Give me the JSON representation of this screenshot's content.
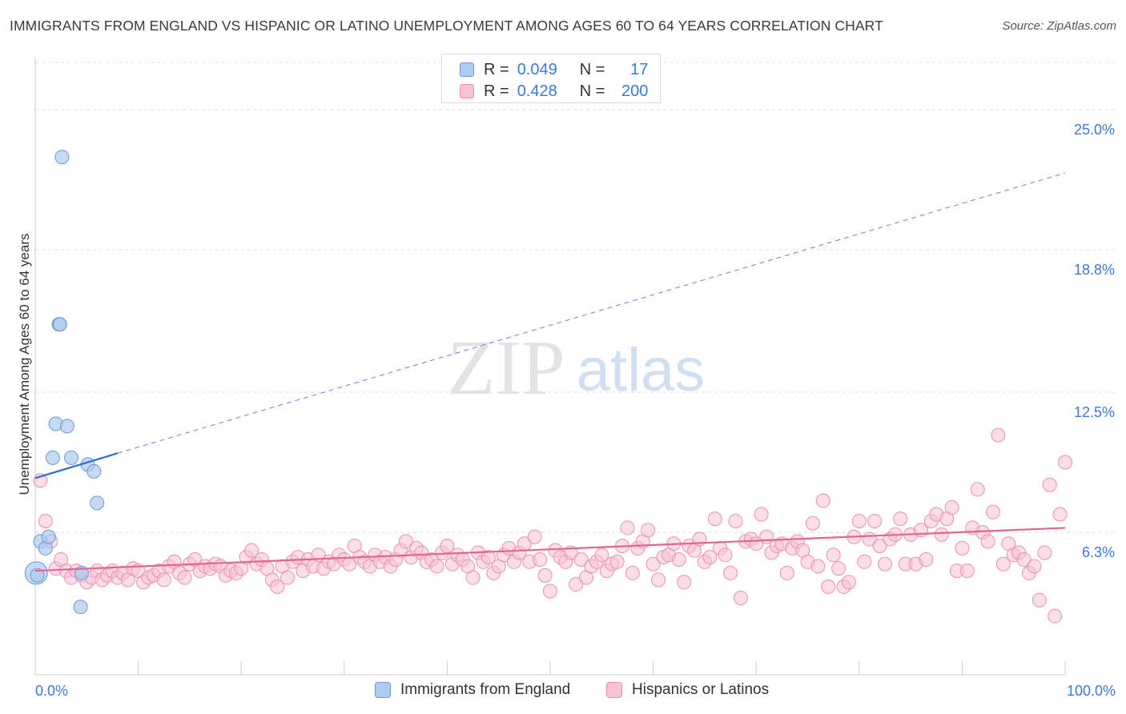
{
  "header": {
    "title": "IMMIGRANTS FROM ENGLAND VS HISPANIC OR LATINO UNEMPLOYMENT AMONG AGES 60 TO 64 YEARS CORRELATION CHART",
    "source": "Source: ZipAtlas.com"
  },
  "legend": {
    "rows": [
      {
        "r_label": "R =",
        "r_value": "0.049",
        "n_label": "N =",
        "n_value": "17"
      },
      {
        "r_label": "R =",
        "r_value": "0.428",
        "n_label": "N =",
        "n_value": "200"
      }
    ]
  },
  "watermark": {
    "zip": "ZIP",
    "atlas": "atlas"
  },
  "colors": {
    "blue_fill": "#aecbf0",
    "blue_stroke": "#6a9ad8",
    "blue_line": "#2d6fd1",
    "pink_fill": "#f7c3d3",
    "pink_stroke": "#e991ae",
    "pink_line": "#e26592",
    "axis_label": "#3b7bd6",
    "grid": "#dddddd"
  },
  "chart_data": {
    "type": "scatter",
    "title": "IMMIGRANTS FROM ENGLAND VS HISPANIC OR LATINO UNEMPLOYMENT AMONG AGES 60 TO 64 YEARS CORRELATION CHART",
    "xlabel": "",
    "ylabel": "Unemployment Among Ages 60 to 64 years",
    "xlim": [
      0,
      100
    ],
    "ylim": [
      0,
      27.3
    ],
    "x_tick_labels": [
      "0.0%",
      "100.0%"
    ],
    "y_ticks": [
      6.3,
      12.5,
      18.8,
      25.0
    ],
    "y_tick_labels": [
      "6.3%",
      "12.5%",
      "18.8%",
      "25.0%"
    ],
    "grid": "horizontal dashed",
    "legend_placement": "bottom-center",
    "series": [
      {
        "name": "Immigrants from England",
        "color": "#aecbf0",
        "points": [
          [
            0.1,
            4.5
          ],
          [
            0.5,
            5.9
          ],
          [
            1.0,
            5.6
          ],
          [
            1.3,
            6.1
          ],
          [
            2.3,
            15.5
          ],
          [
            2.4,
            15.5
          ],
          [
            2.6,
            22.9
          ],
          [
            2.0,
            11.1
          ],
          [
            3.1,
            11.0
          ],
          [
            1.7,
            9.6
          ],
          [
            3.5,
            9.6
          ],
          [
            5.1,
            9.3
          ],
          [
            5.7,
            9.0
          ],
          [
            6.0,
            7.6
          ],
          [
            4.5,
            4.5
          ],
          [
            4.4,
            3.0
          ],
          [
            0.2,
            4.4
          ]
        ],
        "trend": {
          "x": [
            0,
            8
          ],
          "y": [
            8.7,
            9.8
          ],
          "dashed_extension_to": [
            100,
            22.2
          ]
        }
      },
      {
        "name": "Hispanics or Latinos",
        "color": "#f7c3d3",
        "points": [
          [
            0.5,
            8.6
          ],
          [
            1,
            6.8
          ],
          [
            1.5,
            5.9
          ],
          [
            2,
            4.7
          ],
          [
            2.5,
            5.1
          ],
          [
            3,
            4.6
          ],
          [
            3.5,
            4.3
          ],
          [
            4,
            4.6
          ],
          [
            4.5,
            4.4
          ],
          [
            5,
            4.1
          ],
          [
            5.5,
            4.3
          ],
          [
            6,
            4.6
          ],
          [
            6.5,
            4.2
          ],
          [
            7,
            4.4
          ],
          [
            7.5,
            4.6
          ],
          [
            8,
            4.3
          ],
          [
            8.5,
            4.5
          ],
          [
            9,
            4.2
          ],
          [
            9.5,
            4.7
          ],
          [
            10,
            4.6
          ],
          [
            10.5,
            4.1
          ],
          [
            11,
            4.3
          ],
          [
            11.5,
            4.4
          ],
          [
            12,
            4.6
          ],
          [
            12.5,
            4.2
          ],
          [
            13,
            4.8
          ],
          [
            13.5,
            5.0
          ],
          [
            14,
            4.5
          ],
          [
            14.5,
            4.3
          ],
          [
            15,
            4.9
          ],
          [
            15.5,
            5.1
          ],
          [
            16,
            4.6
          ],
          [
            16.5,
            4.8
          ],
          [
            17,
            4.7
          ],
          [
            17.5,
            4.9
          ],
          [
            18,
            4.8
          ],
          [
            18.5,
            4.4
          ],
          [
            19,
            4.6
          ],
          [
            19.5,
            4.5
          ],
          [
            20,
            4.7
          ],
          [
            20.5,
            5.2
          ],
          [
            21,
            5.5
          ],
          [
            21.5,
            4.9
          ],
          [
            22,
            5.1
          ],
          [
            22.5,
            4.7
          ],
          [
            23,
            4.2
          ],
          [
            23.5,
            3.9
          ],
          [
            24,
            4.8
          ],
          [
            24.5,
            4.3
          ],
          [
            25,
            5.0
          ],
          [
            25.5,
            5.2
          ],
          [
            26,
            4.6
          ],
          [
            26.5,
            5.1
          ],
          [
            27,
            4.8
          ],
          [
            27.5,
            5.3
          ],
          [
            28,
            4.7
          ],
          [
            28.5,
            5.0
          ],
          [
            29,
            4.9
          ],
          [
            29.5,
            5.3
          ],
          [
            30,
            5.1
          ],
          [
            30.5,
            4.9
          ],
          [
            31,
            5.7
          ],
          [
            31.5,
            5.2
          ],
          [
            32,
            5.0
          ],
          [
            32.5,
            4.8
          ],
          [
            33,
            5.3
          ],
          [
            33.5,
            5.0
          ],
          [
            34,
            5.2
          ],
          [
            34.5,
            4.8
          ],
          [
            35,
            5.1
          ],
          [
            35.5,
            5.5
          ],
          [
            36,
            5.9
          ],
          [
            36.5,
            5.2
          ],
          [
            37,
            5.6
          ],
          [
            37.5,
            5.4
          ],
          [
            38,
            5.0
          ],
          [
            38.5,
            5.1
          ],
          [
            39,
            4.8
          ],
          [
            39.5,
            5.4
          ],
          [
            40,
            5.7
          ],
          [
            40.5,
            4.9
          ],
          [
            41,
            5.3
          ],
          [
            41.5,
            5.1
          ],
          [
            42,
            4.8
          ],
          [
            42.5,
            4.3
          ],
          [
            43,
            5.4
          ],
          [
            43.5,
            5.0
          ],
          [
            44,
            5.2
          ],
          [
            44.5,
            4.5
          ],
          [
            45,
            4.8
          ],
          [
            45.5,
            5.3
          ],
          [
            46,
            5.6
          ],
          [
            46.5,
            5.0
          ],
          [
            47,
            5.4
          ],
          [
            47.5,
            5.8
          ],
          [
            48,
            5.0
          ],
          [
            48.5,
            6.1
          ],
          [
            49,
            5.1
          ],
          [
            49.5,
            4.4
          ],
          [
            50,
            3.7
          ],
          [
            50.5,
            5.5
          ],
          [
            51,
            5.2
          ],
          [
            51.5,
            5.0
          ],
          [
            52,
            5.4
          ],
          [
            52.5,
            4.0
          ],
          [
            53,
            5.1
          ],
          [
            53.5,
            4.3
          ],
          [
            54,
            4.8
          ],
          [
            54.5,
            5.0
          ],
          [
            55,
            5.3
          ],
          [
            55.5,
            4.6
          ],
          [
            56,
            4.9
          ],
          [
            56.5,
            5.0
          ],
          [
            57,
            5.7
          ],
          [
            57.5,
            6.5
          ],
          [
            58,
            4.5
          ],
          [
            58.5,
            5.6
          ],
          [
            59,
            5.9
          ],
          [
            59.5,
            6.4
          ],
          [
            60,
            4.9
          ],
          [
            60.5,
            4.2
          ],
          [
            61,
            5.2
          ],
          [
            61.5,
            5.3
          ],
          [
            62,
            5.8
          ],
          [
            62.5,
            5.1
          ],
          [
            63,
            4.1
          ],
          [
            63.5,
            5.7
          ],
          [
            64,
            5.5
          ],
          [
            64.5,
            6.0
          ],
          [
            65,
            5.0
          ],
          [
            65.5,
            5.2
          ],
          [
            66,
            6.9
          ],
          [
            66.5,
            5.6
          ],
          [
            67,
            5.3
          ],
          [
            67.5,
            4.5
          ],
          [
            68,
            6.8
          ],
          [
            68.5,
            3.4
          ],
          [
            69,
            5.9
          ],
          [
            69.5,
            6.0
          ],
          [
            70,
            5.8
          ],
          [
            70.5,
            7.1
          ],
          [
            71,
            6.1
          ],
          [
            71.5,
            5.4
          ],
          [
            72,
            5.7
          ],
          [
            72.5,
            5.8
          ],
          [
            73,
            4.5
          ],
          [
            73.5,
            5.6
          ],
          [
            74,
            5.9
          ],
          [
            74.5,
            5.5
          ],
          [
            75,
            5.0
          ],
          [
            75.5,
            6.7
          ],
          [
            76,
            4.8
          ],
          [
            76.5,
            7.7
          ],
          [
            77,
            3.9
          ],
          [
            77.5,
            5.3
          ],
          [
            78,
            4.7
          ],
          [
            78.5,
            3.9
          ],
          [
            79,
            4.1
          ],
          [
            79.5,
            6.1
          ],
          [
            80,
            6.8
          ],
          [
            80.5,
            5.0
          ],
          [
            81,
            6.0
          ],
          [
            81.5,
            6.8
          ],
          [
            82,
            5.7
          ],
          [
            82.5,
            4.9
          ],
          [
            83,
            6.0
          ],
          [
            83.5,
            6.2
          ],
          [
            84,
            6.9
          ],
          [
            84.5,
            4.9
          ],
          [
            85,
            6.2
          ],
          [
            85.5,
            4.9
          ],
          [
            86,
            6.4
          ],
          [
            86.5,
            5.1
          ],
          [
            87,
            6.8
          ],
          [
            87.5,
            7.1
          ],
          [
            88,
            6.2
          ],
          [
            88.5,
            6.9
          ],
          [
            89,
            7.4
          ],
          [
            89.5,
            4.6
          ],
          [
            90,
            5.6
          ],
          [
            90.5,
            4.6
          ],
          [
            91,
            6.5
          ],
          [
            91.5,
            8.2
          ],
          [
            92,
            6.3
          ],
          [
            92.5,
            5.9
          ],
          [
            93,
            7.2
          ],
          [
            93.5,
            10.6
          ],
          [
            94,
            4.9
          ],
          [
            94.5,
            5.8
          ],
          [
            95,
            5.3
          ],
          [
            95.5,
            5.4
          ],
          [
            96,
            5.1
          ],
          [
            96.5,
            4.5
          ],
          [
            97,
            4.8
          ],
          [
            97.5,
            3.3
          ],
          [
            98,
            5.4
          ],
          [
            98.5,
            8.4
          ],
          [
            99,
            2.6
          ],
          [
            99.5,
            7.1
          ],
          [
            100,
            9.4
          ]
        ],
        "trend": {
          "x": [
            0,
            100
          ],
          "y": [
            4.6,
            6.5
          ]
        }
      }
    ]
  }
}
